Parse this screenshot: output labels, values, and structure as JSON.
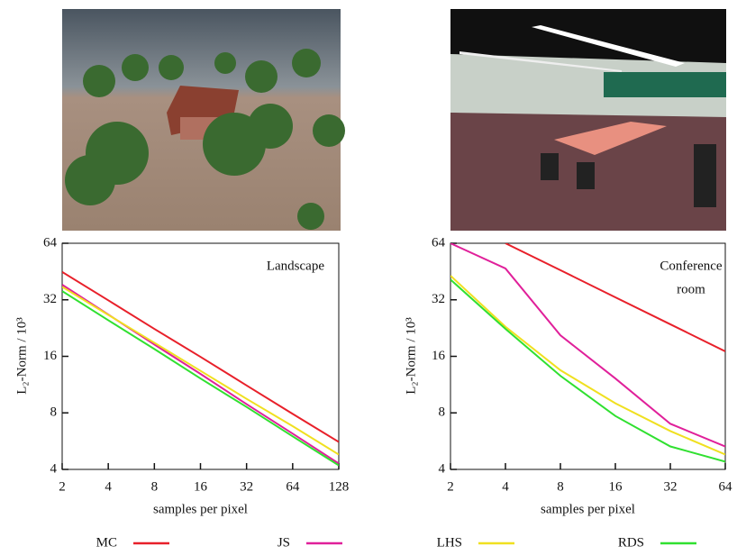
{
  "chart_data": [
    {
      "type": "line",
      "annotation": [
        "Landscape"
      ],
      "x_label": "samples per pixel",
      "y_label": "L₂-Norm / 10³",
      "log_x": true,
      "log_y": true,
      "x": [
        2,
        4,
        8,
        16,
        32,
        64,
        128
      ],
      "xlim": [
        2,
        128
      ],
      "xticks": [
        2,
        4,
        8,
        16,
        32,
        64,
        128
      ],
      "ylim": [
        4,
        64
      ],
      "yticks": [
        4,
        8,
        16,
        32,
        64
      ],
      "series": [
        {
          "name": "MC",
          "color": "#e8202a",
          "values": [
            45,
            31.8,
            22.4,
            15.9,
            11.2,
            7.9,
            5.6
          ]
        },
        {
          "name": "JS",
          "color": "#e0209a",
          "values": [
            38.5,
            26.7,
            18.5,
            12.9,
            8.9,
            6.2,
            4.3
          ]
        },
        {
          "name": "LHS",
          "color": "#f0e020",
          "values": [
            37.5,
            26.6,
            18.9,
            13.4,
            9.5,
            6.8,
            4.8
          ]
        },
        {
          "name": "RDS",
          "color": "#30e030",
          "values": [
            35.6,
            24.9,
            17.5,
            12.2,
            8.6,
            6.0,
            4.2
          ]
        }
      ]
    },
    {
      "type": "line",
      "annotation": [
        "Conference",
        "room"
      ],
      "x_label": "samples per pixel",
      "y_label": "L₂-Norm / 10³",
      "log_x": true,
      "log_y": true,
      "x": [
        2,
        4,
        8,
        16,
        32,
        64
      ],
      "xlim": [
        2,
        64
      ],
      "xticks": [
        2,
        4,
        8,
        16,
        32,
        64
      ],
      "ylim": [
        4,
        64
      ],
      "yticks": [
        4,
        8,
        16,
        32,
        64
      ],
      "series": [
        {
          "name": "MC",
          "color": "#e8202a",
          "values": [
            null,
            64,
            46,
            33,
            23.7,
            17
          ]
        },
        {
          "name": "JS",
          "color": "#e0209a",
          "values": [
            64,
            47,
            20.7,
            12.2,
            7.0,
            5.3
          ]
        },
        {
          "name": "LHS",
          "color": "#f0e020",
          "values": [
            43,
            23,
            13.5,
            9.0,
            6.4,
            4.8
          ]
        },
        {
          "name": "RDS",
          "color": "#30e030",
          "values": [
            41,
            22.4,
            12.6,
            7.7,
            5.3,
            4.4
          ]
        }
      ]
    }
  ]
}
